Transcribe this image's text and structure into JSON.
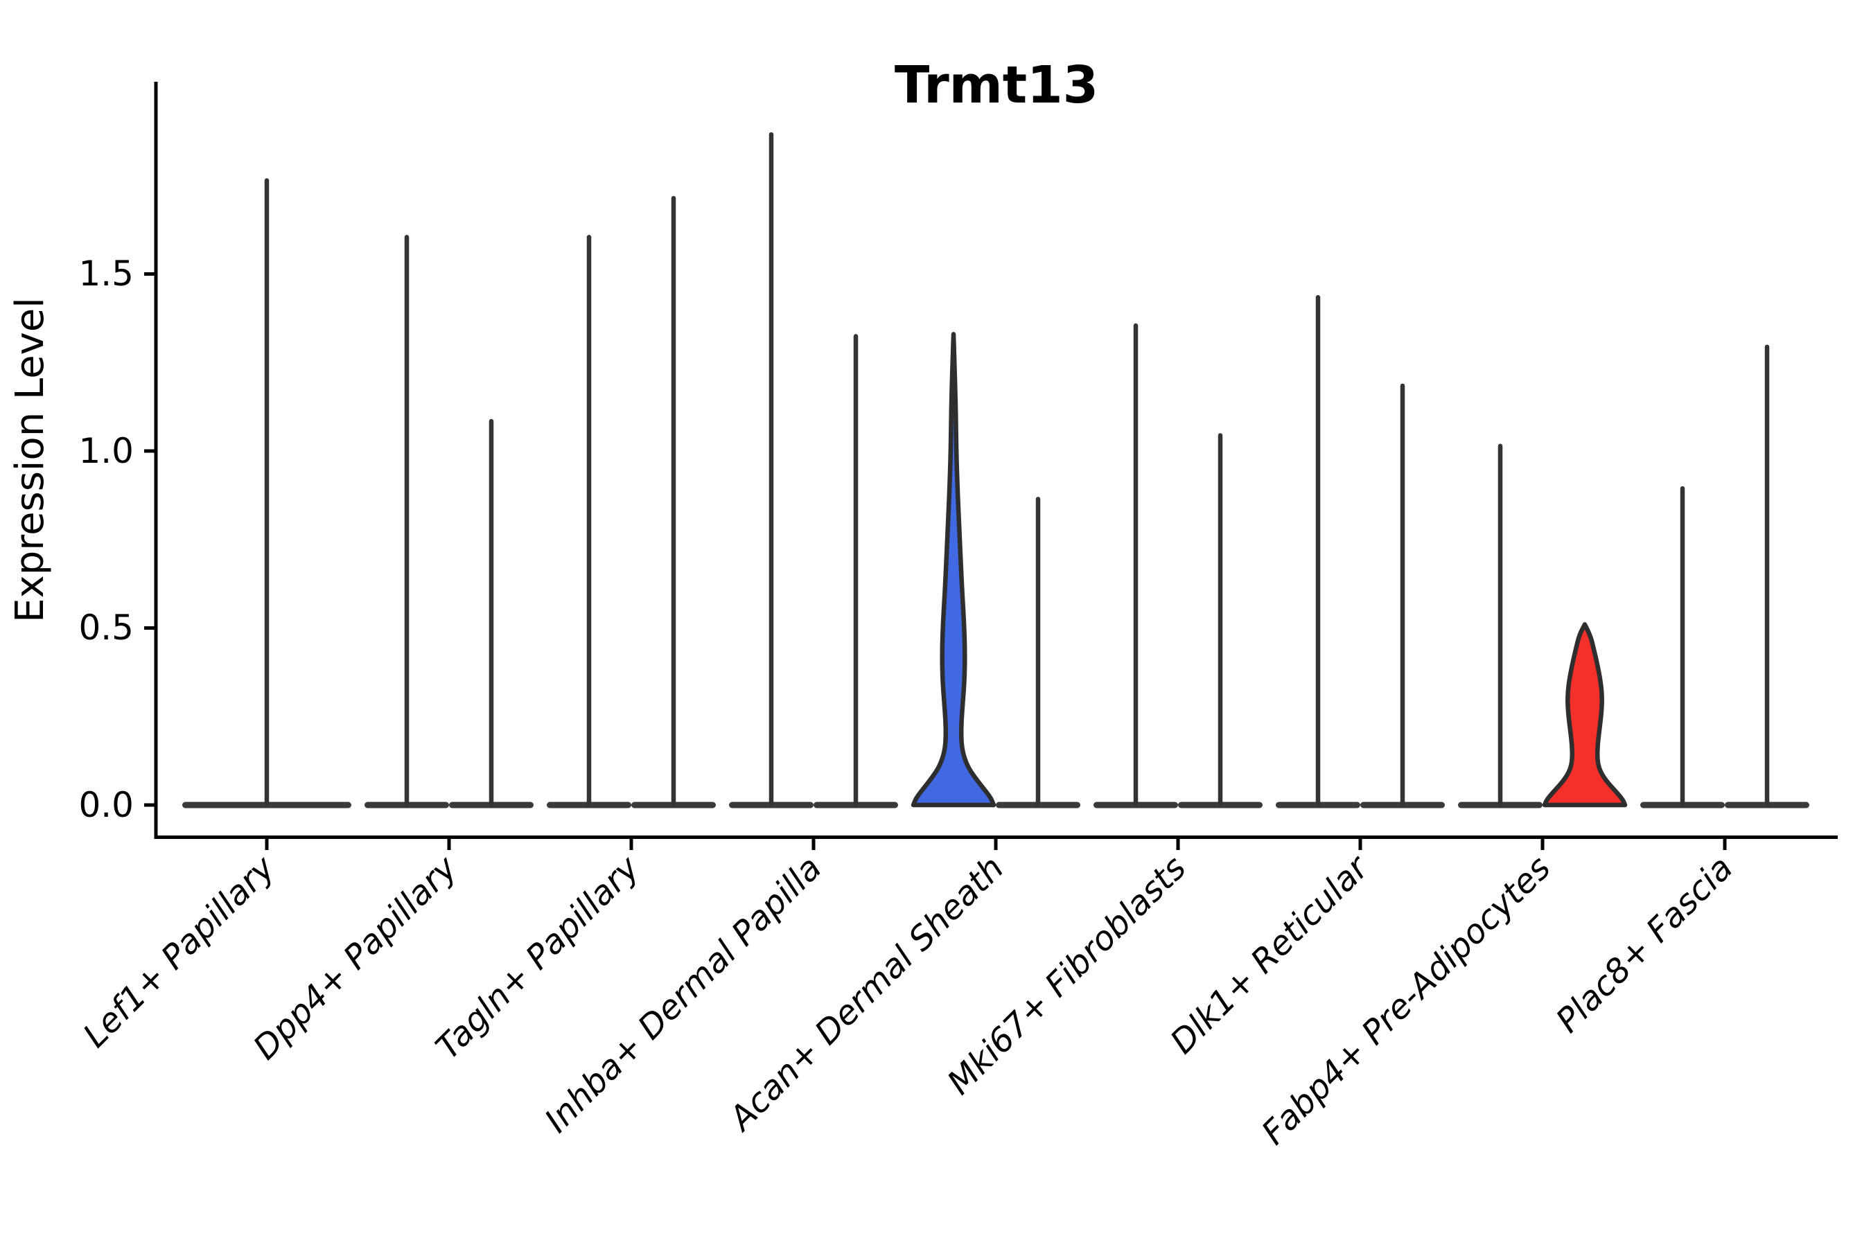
{
  "chart_data": {
    "type": "violin",
    "title": "Trmt13",
    "ylabel": "Expression Level",
    "xlabel": "",
    "ylim": [
      0,
      2.04
    ],
    "yticks": [
      0.0,
      0.5,
      1.0,
      1.5
    ],
    "ytick_labels": [
      "0.0",
      "0.5",
      "1.0",
      "1.5"
    ],
    "grid": "off",
    "legend": "none",
    "categories": [
      "Lef1+ Papillary",
      "Dpp4+ Papillary",
      "Tagln+ Papillary",
      "Inhba+ Dermal Papilla",
      "Acan+ Dermal Sheath",
      "Mki67+ Fibroblasts",
      "Dlk1+ Reticular",
      "Fabp4+ Pre-Adipocytes",
      "Plac8+ Fascia"
    ],
    "violins": [
      {
        "category": "Lef1+ Papillary",
        "items": [
          {
            "shape": "spike",
            "dx": 0,
            "max": 1.77,
            "base_halfwidth": 122
          }
        ]
      },
      {
        "category": "Dpp4+ Papillary",
        "items": [
          {
            "shape": "spike",
            "dx": -61,
            "max": 1.61,
            "base_halfwidth": 61
          },
          {
            "shape": "spike",
            "dx": 61,
            "max": 1.09,
            "base_halfwidth": 61
          }
        ]
      },
      {
        "category": "Tagln+ Papillary",
        "items": [
          {
            "shape": "spike",
            "dx": -61,
            "max": 1.61,
            "base_halfwidth": 61
          },
          {
            "shape": "spike",
            "dx": 61,
            "max": 1.72,
            "base_halfwidth": 61
          }
        ]
      },
      {
        "category": "Inhba+ Dermal Papilla",
        "items": [
          {
            "shape": "spike",
            "dx": -61,
            "max": 1.9,
            "base_halfwidth": 61
          },
          {
            "shape": "spike",
            "dx": 61,
            "max": 1.33,
            "base_halfwidth": 61
          }
        ]
      },
      {
        "category": "Acan+ Dermal Sheath",
        "items": [
          {
            "shape": "filled",
            "dx": -61,
            "max": 1.33,
            "fill": "#4169E1",
            "base_halfwidth": 58,
            "profile": [
              [
                1.33,
                3
              ],
              [
                1.15,
                3
              ],
              [
                1.0,
                4
              ],
              [
                0.88,
                6
              ],
              [
                0.75,
                9
              ],
              [
                0.62,
                12
              ],
              [
                0.52,
                15
              ],
              [
                0.44,
                16.5
              ],
              [
                0.36,
                16
              ],
              [
                0.29,
                13.5
              ],
              [
                0.24,
                11.5
              ],
              [
                0.19,
                11
              ],
              [
                0.15,
                13
              ],
              [
                0.11,
                20
              ],
              [
                0.08,
                30
              ],
              [
                0.05,
                42
              ],
              [
                0.02,
                54
              ],
              [
                0,
                58
              ]
            ]
          },
          {
            "shape": "spike",
            "dx": 61,
            "max": 0.87,
            "base_halfwidth": 61
          }
        ]
      },
      {
        "category": "Mki67+ Fibroblasts",
        "items": [
          {
            "shape": "spike",
            "dx": -61,
            "max": 1.36,
            "base_halfwidth": 61
          },
          {
            "shape": "spike",
            "dx": 61,
            "max": 1.05,
            "base_halfwidth": 61
          }
        ]
      },
      {
        "category": "Dlk1+ Reticular",
        "items": [
          {
            "shape": "spike",
            "dx": -61,
            "max": 1.44,
            "base_halfwidth": 61
          },
          {
            "shape": "spike",
            "dx": 61,
            "max": 1.19,
            "base_halfwidth": 61
          }
        ]
      },
      {
        "category": "Fabp4+ Pre-Adipocytes",
        "items": [
          {
            "shape": "spike",
            "dx": -61,
            "max": 1.02,
            "base_halfwidth": 61
          },
          {
            "shape": "filled",
            "dx": 61,
            "max": 0.51,
            "fill": "#F4302B",
            "base_halfwidth": 58,
            "profile": [
              [
                0.51,
                5
              ],
              [
                0.48,
                8
              ],
              [
                0.44,
                13
              ],
              [
                0.39,
                19
              ],
              [
                0.34,
                23.5
              ],
              [
                0.3,
                25
              ],
              [
                0.26,
                24
              ],
              [
                0.21,
                21
              ],
              [
                0.17,
                18.5
              ],
              [
                0.13,
                18
              ],
              [
                0.1,
                21
              ],
              [
                0.07,
                30
              ],
              [
                0.04,
                44
              ],
              [
                0.015,
                55
              ],
              [
                0,
                58
              ]
            ]
          }
        ]
      },
      {
        "category": "Plac8+ Fascia",
        "items": [
          {
            "shape": "spike",
            "dx": -61,
            "max": 0.9,
            "base_halfwidth": 61
          },
          {
            "shape": "spike",
            "dx": 61,
            "max": 1.3,
            "base_halfwidth": 61
          }
        ]
      }
    ],
    "colors": {
      "violin_outline": "#2E2E2E",
      "spike": "#333333",
      "base_line": "#3A3A3A",
      "axis": "#000000",
      "highlight_blue": "#4169E1",
      "highlight_red": "#F4302B"
    }
  }
}
